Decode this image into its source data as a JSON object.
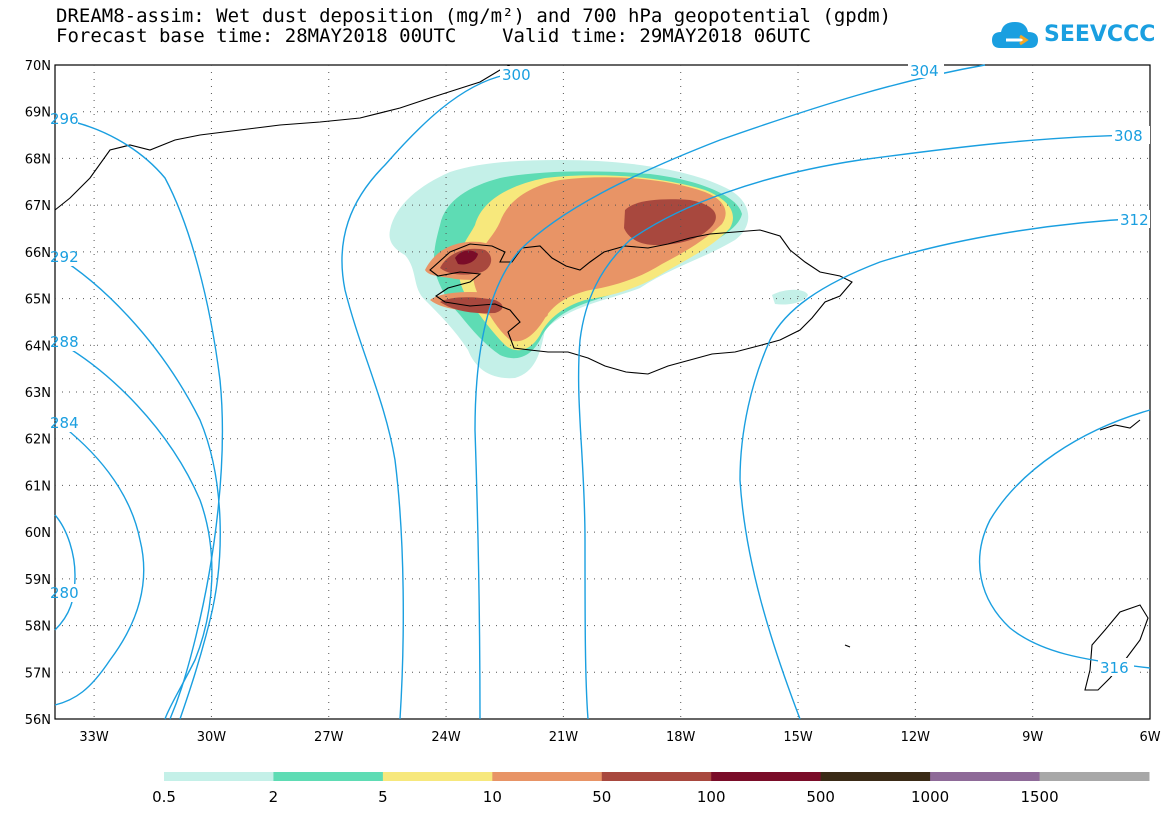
{
  "header": {
    "title_line1": "DREAM8-assim: Wet dust deposition (mg/m²) and 700 hPa geopotential (gpdm)",
    "title_line2": "Forecast base time: 28MAY2018 00UTC    Valid time: 29MAY2018 06UTC",
    "logo_text": "SEEVCCC",
    "logo_icon": "cloud-icon"
  },
  "map": {
    "lat_labels": [
      "70N",
      "69N",
      "68N",
      "67N",
      "66N",
      "65N",
      "64N",
      "63N",
      "62N",
      "61N",
      "60N",
      "59N",
      "58N",
      "57N",
      "56N"
    ],
    "lon_labels": [
      "33W",
      "30W",
      "27W",
      "24W",
      "21W",
      "18W",
      "15W",
      "12W",
      "9W",
      "6W"
    ],
    "contour_labels": [
      {
        "text": "300"
      },
      {
        "text": "304"
      },
      {
        "text": "308"
      },
      {
        "text": "312"
      },
      {
        "text": "316"
      },
      {
        "text": "296"
      },
      {
        "text": "292"
      },
      {
        "text": "288"
      },
      {
        "text": "284"
      },
      {
        "text": "280"
      }
    ],
    "colors": {
      "contour": "#1a9fe0",
      "coast": "#000000",
      "grid": "#555555"
    }
  },
  "legend": {
    "labels": [
      "0.5",
      "2",
      "5",
      "10",
      "50",
      "100",
      "500",
      "1000",
      "1500"
    ],
    "colors": [
      "#c4f0e8",
      "#5edcb4",
      "#f7e87c",
      "#e89466",
      "#a8483e",
      "#7a0c28",
      "#3a2a16",
      "#8e6a98",
      "#a8a8a8"
    ]
  }
}
